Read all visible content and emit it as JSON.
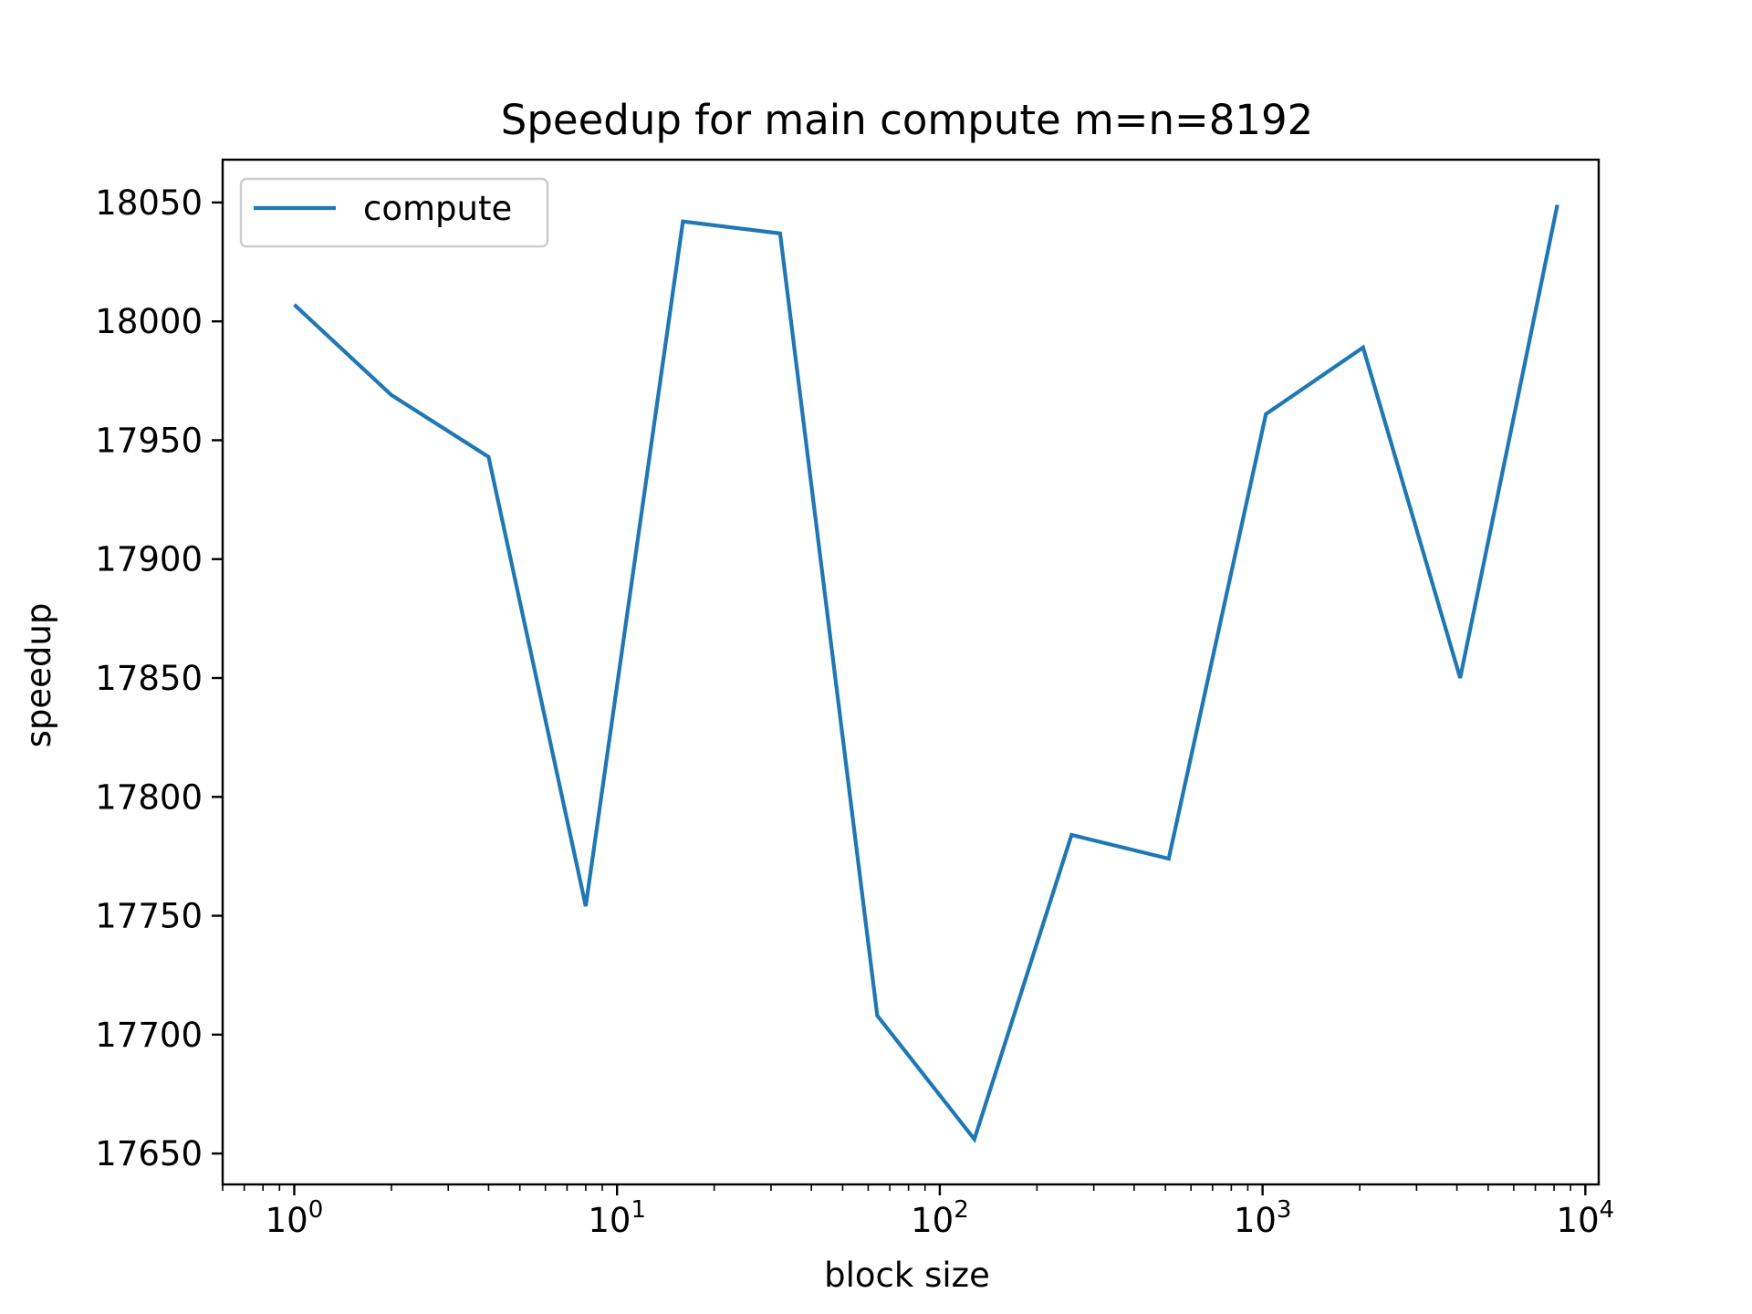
{
  "chart_data": {
    "type": "line",
    "title": "Speedup for main compute m=n=8192",
    "xlabel": "block size",
    "ylabel": "speedup",
    "xscale": "log",
    "xlim": [
      0.6,
      11000
    ],
    "ylim": [
      17637,
      18068
    ],
    "x_ticks": [
      {
        "value": 1,
        "base": "10",
        "exp": "0"
      },
      {
        "value": 10,
        "base": "10",
        "exp": "1"
      },
      {
        "value": 100,
        "base": "10",
        "exp": "2"
      },
      {
        "value": 1000,
        "base": "10",
        "exp": "3"
      },
      {
        "value": 10000,
        "base": "10",
        "exp": "4"
      }
    ],
    "y_ticks": [
      {
        "value": 17650,
        "label": "17650"
      },
      {
        "value": 17700,
        "label": "17700"
      },
      {
        "value": 17750,
        "label": "17750"
      },
      {
        "value": 17800,
        "label": "17800"
      },
      {
        "value": 17850,
        "label": "17850"
      },
      {
        "value": 17900,
        "label": "17900"
      },
      {
        "value": 17950,
        "label": "17950"
      },
      {
        "value": 18000,
        "label": "18000"
      },
      {
        "value": 18050,
        "label": "18050"
      }
    ],
    "grid": false,
    "legend_position": "upper-left",
    "series": [
      {
        "name": "compute",
        "color": "#1f77b4",
        "x": [
          1,
          2,
          4,
          8,
          16,
          32,
          64,
          128,
          256,
          512,
          1024,
          2048,
          4096,
          8192
        ],
        "y": [
          18007,
          17969,
          17943,
          17754,
          18042,
          18037,
          17708,
          17656,
          17784,
          17774,
          17961,
          17989,
          17850,
          18049
        ]
      }
    ]
  }
}
